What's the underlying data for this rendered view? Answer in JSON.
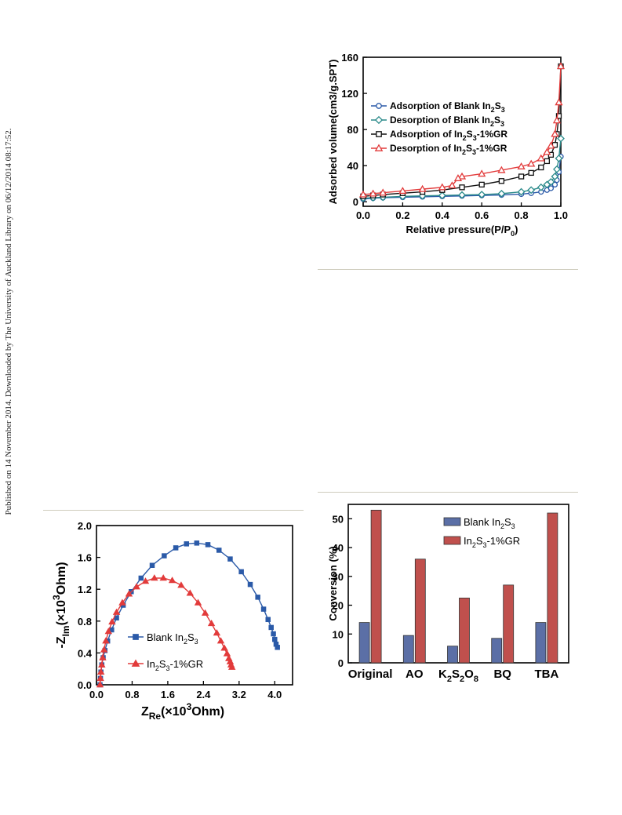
{
  "side_note": "Published on 14 November 2014. Downloaded by The University of Auckland Library on 06/12/2014 08:17:52.",
  "chart_data": [
    {
      "type": "line",
      "ylabel": "Adsorbed volume(cm3/g.SPT)",
      "xlabel_main": "Relative pressure(P/P",
      "xlabel_sub": "0",
      "xlabel_tail": ")",
      "xlim": [
        0.0,
        1.0
      ],
      "ylim": [
        -5,
        160
      ],
      "xticks": [
        0.0,
        0.2,
        0.4,
        0.6,
        0.8,
        1.0
      ],
      "xtick_labels": [
        "0.0",
        "0.2",
        "0.4",
        "0.6",
        "0.8",
        "1.0"
      ],
      "yticks": [
        0,
        40,
        80,
        120,
        160
      ],
      "ytick_labels": [
        "0",
        "40",
        "80",
        "120",
        "160"
      ],
      "legend_placement": "center-left",
      "series": [
        {
          "name": "Adsorption of Blank In2S3",
          "label_parts": [
            "Adsorption of Blank In",
            "2",
            "S",
            "3"
          ],
          "color": "#2b5aa8",
          "marker": "circle",
          "x": [
            0.0,
            0.05,
            0.1,
            0.2,
            0.3,
            0.4,
            0.5,
            0.6,
            0.7,
            0.8,
            0.85,
            0.9,
            0.93,
            0.95,
            0.97,
            0.98,
            0.99,
            1.0
          ],
          "y": [
            3,
            4,
            4.5,
            5,
            5.5,
            6,
            6.5,
            7,
            7.5,
            8.5,
            9.5,
            11,
            13,
            15,
            19,
            24,
            33,
            50
          ]
        },
        {
          "name": "Desorption of Blank In2S3",
          "label_parts": [
            "Desorption of Blank In",
            "2",
            "S",
            "3"
          ],
          "color": "#2a8a8a",
          "marker": "diamond",
          "x": [
            1.0,
            0.99,
            0.98,
            0.97,
            0.95,
            0.93,
            0.9,
            0.85,
            0.8,
            0.7,
            0.6,
            0.5,
            0.4,
            0.3,
            0.2,
            0.1,
            0.05,
            0.0
          ],
          "y": [
            70,
            48,
            36,
            28,
            22,
            19,
            16,
            13,
            11,
            9,
            8,
            7.5,
            7,
            6.5,
            6,
            5,
            4.5,
            4
          ]
        },
        {
          "name": "Adsorption of In2S3-1%GR",
          "label_parts": [
            "Adsorption of In",
            "2",
            "S",
            "3",
            "-1%GR"
          ],
          "color": "#111111",
          "marker": "square",
          "x": [
            0.0,
            0.05,
            0.1,
            0.2,
            0.3,
            0.4,
            0.5,
            0.6,
            0.7,
            0.8,
            0.85,
            0.9,
            0.93,
            0.95,
            0.97,
            0.98,
            0.99,
            1.0
          ],
          "y": [
            6,
            7,
            8,
            9.5,
            11,
            13,
            16,
            19,
            23,
            28,
            32,
            38,
            45,
            52,
            63,
            75,
            95,
            150
          ]
        },
        {
          "name": "Desorption of In2S3-1%GR",
          "label_parts": [
            "Desorption of In",
            "2",
            "S",
            "3",
            "-1%GR"
          ],
          "color": "#e23b3b",
          "marker": "triangle",
          "x": [
            1.0,
            0.99,
            0.98,
            0.97,
            0.95,
            0.93,
            0.9,
            0.85,
            0.8,
            0.7,
            0.6,
            0.5,
            0.48,
            0.45,
            0.4,
            0.3,
            0.2,
            0.1,
            0.05,
            0.0
          ],
          "y": [
            150,
            110,
            90,
            75,
            62,
            55,
            48,
            42,
            39,
            35,
            31,
            28,
            26,
            18,
            16,
            14,
            12,
            10,
            9,
            8
          ]
        }
      ]
    },
    {
      "type": "scatter",
      "ylabel_parts": [
        "-Z",
        "Im",
        "(×10",
        "3",
        "Ohm)"
      ],
      "xlabel_parts": [
        "Z",
        "Re",
        "(×10",
        "3",
        "Ohm)"
      ],
      "xlim": [
        0.0,
        4.4
      ],
      "ylim": [
        0.0,
        2.0
      ],
      "xticks": [
        0.0,
        0.8,
        1.6,
        2.4,
        3.2,
        4.0
      ],
      "xtick_labels": [
        "0.0",
        "0.8",
        "1.6",
        "2.4",
        "3.2",
        "4.0"
      ],
      "yticks": [
        0.0,
        0.4,
        0.8,
        1.2,
        1.6,
        2.0
      ],
      "ytick_labels": [
        "0.0",
        "0.4",
        "0.8",
        "1.2",
        "1.6",
        "2.0"
      ],
      "legend_placement": "center-left",
      "series": [
        {
          "name": "Blank In2S3",
          "label_parts": [
            "Blank In",
            "2",
            "S",
            "3"
          ],
          "color": "#2b5aa8",
          "marker": "square",
          "x": [
            0.08,
            0.09,
            0.1,
            0.12,
            0.15,
            0.19,
            0.25,
            0.34,
            0.45,
            0.6,
            0.78,
            1.0,
            1.25,
            1.52,
            1.78,
            2.02,
            2.25,
            2.5,
            2.75,
            3.0,
            3.25,
            3.45,
            3.62,
            3.75,
            3.85,
            3.92,
            3.97,
            4.0,
            4.03,
            4.06
          ],
          "y": [
            0.0,
            0.08,
            0.16,
            0.25,
            0.34,
            0.43,
            0.55,
            0.69,
            0.84,
            1.0,
            1.17,
            1.34,
            1.5,
            1.62,
            1.72,
            1.77,
            1.78,
            1.76,
            1.69,
            1.58,
            1.42,
            1.26,
            1.1,
            0.95,
            0.82,
            0.72,
            0.64,
            0.57,
            0.51,
            0.47
          ]
        },
        {
          "name": "In2S3-1%GR",
          "label_parts": [
            "In",
            "2",
            "S",
            "3",
            "-1%GR"
          ],
          "color": "#e23b3b",
          "marker": "triangle",
          "x": [
            0.08,
            0.09,
            0.1,
            0.12,
            0.14,
            0.17,
            0.21,
            0.27,
            0.35,
            0.45,
            0.58,
            0.73,
            0.9,
            1.1,
            1.3,
            1.5,
            1.7,
            1.9,
            2.1,
            2.28,
            2.44,
            2.58,
            2.7,
            2.79,
            2.87,
            2.93,
            2.97,
            3.0,
            3.02,
            3.04
          ],
          "y": [
            0.0,
            0.08,
            0.16,
            0.25,
            0.34,
            0.44,
            0.55,
            0.67,
            0.79,
            0.91,
            1.03,
            1.14,
            1.23,
            1.3,
            1.34,
            1.34,
            1.31,
            1.25,
            1.15,
            1.03,
            0.9,
            0.77,
            0.65,
            0.55,
            0.46,
            0.39,
            0.33,
            0.29,
            0.25,
            0.22
          ]
        }
      ]
    },
    {
      "type": "bar",
      "ylabel": "Conversion (%)",
      "categories": [
        "Original",
        "AO",
        "K2S2O8",
        "BQ",
        "TBA"
      ],
      "category_label_parts": [
        [
          "Original"
        ],
        [
          "AO"
        ],
        [
          "K",
          "2",
          "S",
          "2",
          "O",
          "8"
        ],
        [
          "BQ"
        ],
        [
          "TBA"
        ]
      ],
      "ylim": [
        0,
        55
      ],
      "yticks": [
        0,
        10,
        20,
        30,
        40,
        50
      ],
      "ytick_labels": [
        "0",
        "10",
        "20",
        "30",
        "40",
        "50"
      ],
      "legend_placement": "top-right",
      "series": [
        {
          "name": "Blank In2S3",
          "label_parts": [
            "Blank In",
            "2",
            "S",
            "3"
          ],
          "color": "#5b6fa6",
          "values": [
            14,
            9.5,
            5.8,
            8.5,
            14
          ]
        },
        {
          "name": "In2S3-1%GR",
          "label_parts": [
            "In",
            "2",
            "S",
            "3",
            "-1%GR"
          ],
          "color": "#c0504d",
          "values": [
            53,
            36,
            22.5,
            27,
            52
          ]
        }
      ]
    }
  ]
}
